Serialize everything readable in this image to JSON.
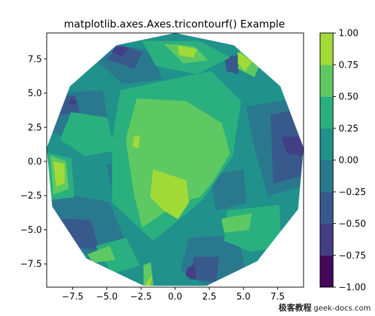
{
  "chart_data": {
    "type": "tricontourf",
    "title": "matplotlib.axes.Axes.tricontourf() Example",
    "xlabel": "",
    "ylabel": "",
    "xlim": [
      -9.4,
      9.4
    ],
    "ylim": [
      -9.2,
      9.4
    ],
    "x_ticks": [
      -7.5,
      -5.0,
      -2.5,
      0.0,
      2.5,
      5.0,
      7.5
    ],
    "x_tick_labels": [
      "−7.5",
      "−5.0",
      "−2.5",
      "0.0",
      "2.5",
      "5.0",
      "7.5"
    ],
    "y_ticks": [
      -7.5,
      -5.0,
      -2.5,
      0.0,
      2.5,
      5.0,
      7.5
    ],
    "y_tick_labels": [
      "−7.5",
      "−5.0",
      "−2.5",
      "0.0",
      "2.5",
      "5.0",
      "7.5"
    ],
    "colorbar": {
      "levels": [
        -1.0,
        -0.75,
        -0.5,
        -0.25,
        0.0,
        0.25,
        0.5,
        0.75,
        1.0
      ],
      "tick_labels": [
        "−1.00",
        "−0.75",
        "−0.50",
        "−0.25",
        "0.00",
        "0.25",
        "0.50",
        "0.75",
        "1.00"
      ],
      "colors": [
        "#46085c",
        "#433e85",
        "#38598c",
        "#2a788e",
        "#21918c",
        "#2ab07f",
        "#5ec962",
        "#a2da37",
        "#dce319"
      ]
    },
    "boundary": [
      [
        0.0,
        9.4
      ],
      [
        4.3,
        8.5
      ],
      [
        7.7,
        5.5
      ],
      [
        9.4,
        1.0
      ],
      [
        9.0,
        -3.5
      ],
      [
        6.0,
        -7.3
      ],
      [
        2.3,
        -9.1
      ],
      [
        -2.3,
        -9.1
      ],
      [
        -6.5,
        -7.1
      ],
      [
        -9.0,
        -3.3
      ],
      [
        -9.4,
        1.0
      ],
      [
        -7.7,
        5.5
      ],
      [
        -4.3,
        8.5
      ]
    ],
    "regions": [
      {
        "level": 0.0,
        "points": [
          [
            -9.4,
            9.4
          ],
          [
            9.4,
            9.4
          ],
          [
            9.4,
            -9.2
          ],
          [
            -9.4,
            -9.2
          ]
        ]
      },
      {
        "level": -0.25,
        "points": [
          [
            -8.8,
            5.0
          ],
          [
            -5.3,
            5.2
          ],
          [
            -4.8,
            2.0
          ],
          [
            -7.0,
            1.2
          ],
          [
            -9.0,
            2.2
          ]
        ]
      },
      {
        "level": -0.25,
        "points": [
          [
            5.2,
            4.0
          ],
          [
            9.0,
            4.6
          ],
          [
            9.4,
            -1.8
          ],
          [
            6.8,
            -2.5
          ],
          [
            5.8,
            1.0
          ]
        ]
      },
      {
        "level": -0.25,
        "points": [
          [
            -9.0,
            -2.2
          ],
          [
            -4.8,
            -3.0
          ],
          [
            -3.6,
            -6.0
          ],
          [
            -6.0,
            -7.3
          ],
          [
            -9.0,
            -4.4
          ]
        ]
      },
      {
        "level": -0.25,
        "points": [
          [
            1.0,
            -5.6
          ],
          [
            4.6,
            -5.4
          ],
          [
            5.2,
            -8.2
          ],
          [
            2.4,
            -9.1
          ],
          [
            0.4,
            -8.0
          ]
        ]
      },
      {
        "level": -0.25,
        "points": [
          [
            -4.4,
            8.5
          ],
          [
            -1.6,
            8.1
          ],
          [
            -1.0,
            6.0
          ],
          [
            -3.8,
            5.7
          ],
          [
            -5.6,
            7.2
          ]
        ]
      },
      {
        "level": -0.25,
        "points": [
          [
            -5.0,
            -0.2
          ],
          [
            -2.4,
            0.2
          ],
          [
            -2.2,
            -2.4
          ],
          [
            -4.5,
            -2.6
          ]
        ]
      },
      {
        "level": -0.25,
        "points": [
          [
            2.6,
            -1.0
          ],
          [
            5.0,
            -0.6
          ],
          [
            5.2,
            -3.0
          ],
          [
            3.0,
            -3.6
          ]
        ]
      },
      {
        "level": -0.5,
        "points": [
          [
            7.0,
            3.4
          ],
          [
            9.0,
            3.8
          ],
          [
            9.4,
            -1.0
          ],
          [
            7.2,
            -1.6
          ]
        ]
      },
      {
        "level": -0.5,
        "points": [
          [
            -8.4,
            -4.2
          ],
          [
            -6.2,
            -4.3
          ],
          [
            -5.6,
            -6.4
          ],
          [
            -7.6,
            -6.3
          ]
        ]
      },
      {
        "level": -0.5,
        "points": [
          [
            -4.0,
            8.5
          ],
          [
            -2.4,
            8.0
          ],
          [
            -3.0,
            6.8
          ],
          [
            -5.0,
            7.5
          ]
        ]
      },
      {
        "level": -0.5,
        "points": [
          [
            1.4,
            -7.0
          ],
          [
            3.2,
            -7.0
          ],
          [
            3.0,
            -8.8
          ],
          [
            1.0,
            -8.6
          ]
        ]
      },
      {
        "level": -0.5,
        "points": [
          [
            -9.0,
            4.8
          ],
          [
            -7.3,
            4.8
          ],
          [
            -7.0,
            3.6
          ],
          [
            -8.6,
            3.4
          ]
        ]
      },
      {
        "level": -0.5,
        "points": [
          [
            -4.2,
            -0.6
          ],
          [
            -3.0,
            -0.4
          ],
          [
            -3.2,
            -1.6
          ],
          [
            -4.4,
            -1.4
          ]
        ]
      },
      {
        "level": -0.5,
        "points": [
          [
            3.6,
            7.6
          ],
          [
            4.8,
            7.8
          ],
          [
            4.6,
            6.4
          ],
          [
            3.8,
            6.6
          ]
        ]
      },
      {
        "level": -0.75,
        "points": [
          [
            7.8,
            1.8
          ],
          [
            9.3,
            1.8
          ],
          [
            9.4,
            0.4
          ],
          [
            8.2,
            0.6
          ]
        ]
      },
      {
        "level": -0.75,
        "points": [
          [
            -7.6,
            4.6
          ],
          [
            -7.2,
            4.4
          ],
          [
            -7.5,
            4.1
          ],
          [
            -7.8,
            4.3
          ]
        ]
      },
      {
        "level": -0.75,
        "points": [
          [
            0.9,
            -7.8
          ],
          [
            1.4,
            -7.6
          ],
          [
            1.5,
            -8.6
          ],
          [
            0.8,
            -8.4
          ]
        ]
      },
      {
        "level": -0.75,
        "points": [
          [
            -4.3,
            8.4
          ],
          [
            -3.4,
            8.3
          ],
          [
            -3.9,
            7.7
          ],
          [
            -4.6,
            8.0
          ]
        ]
      },
      {
        "level": 0.25,
        "points": [
          [
            -7.6,
            3.6
          ],
          [
            -5.0,
            3.2
          ],
          [
            -4.4,
            0.8
          ],
          [
            -6.6,
            0.4
          ],
          [
            -8.4,
            1.6
          ]
        ]
      },
      {
        "level": 0.25,
        "points": [
          [
            -4.0,
            5.2
          ],
          [
            2.6,
            6.6
          ],
          [
            4.8,
            4.4
          ],
          [
            4.2,
            0.4
          ],
          [
            2.0,
            -2.8
          ],
          [
            -1.6,
            -5.8
          ],
          [
            -4.6,
            -3.0
          ],
          [
            -4.6,
            1.6
          ]
        ]
      },
      {
        "level": 0.25,
        "points": [
          [
            -2.4,
            8.8
          ],
          [
            1.8,
            8.8
          ],
          [
            4.0,
            7.6
          ],
          [
            1.6,
            6.4
          ],
          [
            -1.4,
            7.0
          ]
        ]
      },
      {
        "level": 0.25,
        "points": [
          [
            3.8,
            -3.6
          ],
          [
            7.6,
            -3.2
          ],
          [
            7.8,
            -6.2
          ],
          [
            5.6,
            -6.6
          ],
          [
            3.6,
            -5.8
          ]
        ]
      },
      {
        "level": 0.25,
        "points": [
          [
            -9.3,
            0.6
          ],
          [
            -7.6,
            0.2
          ],
          [
            -7.4,
            -2.6
          ],
          [
            -9.1,
            -2.8
          ]
        ]
      },
      {
        "level": 0.25,
        "points": [
          [
            -5.8,
            -6.2
          ],
          [
            -3.6,
            -5.6
          ],
          [
            -2.6,
            -7.6
          ],
          [
            -4.6,
            -8.2
          ]
        ]
      },
      {
        "level": 0.5,
        "points": [
          [
            -2.8,
            4.6
          ],
          [
            0.8,
            4.4
          ],
          [
            3.4,
            2.8
          ],
          [
            4.0,
            0.6
          ],
          [
            2.8,
            -1.4
          ],
          [
            1.8,
            -2.6
          ],
          [
            0.2,
            -3.0
          ],
          [
            -1.2,
            -4.0
          ],
          [
            -2.4,
            -4.8
          ],
          [
            -3.0,
            -2.4
          ],
          [
            -3.6,
            1.6
          ]
        ]
      },
      {
        "level": 0.5,
        "points": [
          [
            -9.1,
            0.4
          ],
          [
            -8.0,
            0.0
          ],
          [
            -7.8,
            -2.0
          ],
          [
            -8.9,
            -2.4
          ]
        ]
      },
      {
        "level": 0.5,
        "points": [
          [
            -0.8,
            8.6
          ],
          [
            1.4,
            8.4
          ],
          [
            2.4,
            7.4
          ],
          [
            0.6,
            7.2
          ]
        ]
      },
      {
        "level": 0.5,
        "points": [
          [
            4.8,
            8.4
          ],
          [
            6.4,
            7.6
          ],
          [
            5.8,
            6.2
          ],
          [
            4.6,
            6.8
          ]
        ]
      },
      {
        "level": 0.5,
        "points": [
          [
            3.4,
            -4.2
          ],
          [
            5.6,
            -3.8
          ],
          [
            5.4,
            -5.0
          ],
          [
            3.6,
            -5.2
          ]
        ]
      },
      {
        "level": 0.5,
        "points": [
          [
            -6.4,
            -6.8
          ],
          [
            -4.8,
            -6.2
          ],
          [
            -4.4,
            -7.2
          ],
          [
            -6.0,
            -7.4
          ]
        ]
      },
      {
        "level": 0.5,
        "points": [
          [
            -2.3,
            -7.6
          ],
          [
            -1.8,
            -7.4
          ],
          [
            -1.6,
            -9.1
          ],
          [
            -2.3,
            -9.1
          ]
        ]
      },
      {
        "level": 0.75,
        "points": [
          [
            -1.6,
            -0.6
          ],
          [
            0.8,
            -1.4
          ],
          [
            1.0,
            -3.0
          ],
          [
            0.2,
            -4.2
          ],
          [
            -0.8,
            -3.6
          ],
          [
            -1.8,
            -2.6
          ]
        ]
      },
      {
        "level": 0.75,
        "points": [
          [
            -8.9,
            0.0
          ],
          [
            -8.1,
            -0.2
          ],
          [
            -8.1,
            -1.6
          ],
          [
            -8.7,
            -1.8
          ]
        ]
      },
      {
        "level": 0.75,
        "points": [
          [
            0.2,
            8.5
          ],
          [
            1.6,
            8.2
          ],
          [
            1.3,
            7.6
          ],
          [
            0.3,
            7.8
          ]
        ]
      },
      {
        "level": 0.75,
        "points": [
          [
            4.6,
            8.0
          ],
          [
            5.6,
            7.3
          ],
          [
            5.1,
            6.6
          ],
          [
            4.6,
            7.2
          ]
        ]
      },
      {
        "level": 0.75,
        "points": [
          [
            -3.0,
            1.8
          ],
          [
            -2.6,
            1.9
          ],
          [
            -2.7,
            1.0
          ],
          [
            -3.1,
            1.1
          ]
        ]
      },
      {
        "level": 0.75,
        "points": [
          [
            -1.9,
            -8.6
          ],
          [
            -1.7,
            -8.4
          ],
          [
            -1.9,
            -9.1
          ],
          [
            -2.2,
            -9.1
          ]
        ]
      }
    ]
  }
}
